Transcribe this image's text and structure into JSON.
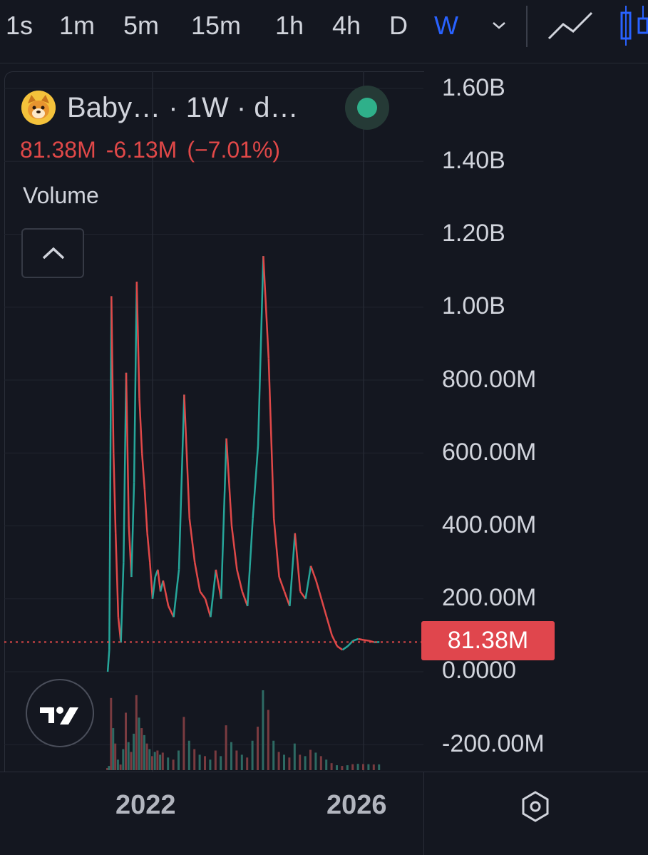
{
  "toolbar": {
    "timeframes": [
      "1s",
      "1m",
      "5m",
      "15m",
      "1h",
      "4h",
      "D",
      "W"
    ],
    "active_timeframe": "W",
    "icons": [
      "chevron-down-icon",
      "line-chart-icon",
      "candlestick-icon"
    ]
  },
  "legend": {
    "symbol_title": "Baby… · 1W · d…",
    "last_value": "81.38M",
    "change": "-6.13M",
    "change_percent": "(−7.01%)",
    "indicator": "Volume",
    "status_color": "#2fb08a",
    "down_color": "#e04848",
    "up_color": "#26a69a"
  },
  "price_badge": "81.38M",
  "axes": {
    "y_ticks": [
      "1.60B",
      "1.40B",
      "1.20B",
      "1.00B",
      "800.00M",
      "600.00M",
      "400.00M",
      "200.00M",
      "0.0000",
      "-200.00M"
    ],
    "x_ticks": [
      "2022",
      "2026"
    ]
  },
  "chart_data": {
    "type": "line",
    "title": "",
    "xlabel": "",
    "ylabel": "",
    "ylim": [
      -270000000,
      1700000000
    ],
    "last_value": 81380000,
    "grid": true,
    "series": [
      {
        "color": "#e04848",
        "x": [
          2021.15,
          2021.18,
          2021.22,
          2021.26,
          2021.3,
          2021.35,
          2021.4,
          2021.45,
          2021.5,
          2021.55,
          2021.6,
          2021.65,
          2021.7,
          2021.75,
          2021.8,
          2021.85,
          2021.9,
          2021.95,
          2022.0,
          2022.05,
          2022.1,
          2022.15,
          2022.2,
          2022.3,
          2022.4,
          2022.5,
          2022.6,
          2022.7,
          2022.8,
          2022.9,
          2023.0,
          2023.1,
          2023.2,
          2023.3,
          2023.4,
          2023.5,
          2023.6,
          2023.7,
          2023.8,
          2023.9,
          2024.0,
          2024.1,
          2024.2,
          2024.3,
          2024.4,
          2024.5,
          2024.6,
          2024.7,
          2024.8,
          2024.9,
          2025.0,
          2025.1,
          2025.2,
          2025.3,
          2025.4,
          2025.5,
          2025.6,
          2025.7,
          2025.8,
          2025.9,
          2026.0,
          2026.1,
          2026.2,
          2026.3
        ],
        "y": [
          0,
          60000000,
          1030000000,
          600000000,
          380000000,
          150000000,
          80000000,
          300000000,
          820000000,
          400000000,
          260000000,
          520000000,
          1070000000,
          750000000,
          600000000,
          500000000,
          380000000,
          300000000,
          200000000,
          260000000,
          280000000,
          220000000,
          250000000,
          180000000,
          150000000,
          280000000,
          760000000,
          420000000,
          300000000,
          220000000,
          200000000,
          150000000,
          280000000,
          200000000,
          640000000,
          400000000,
          280000000,
          220000000,
          180000000,
          420000000,
          620000000,
          1140000000,
          860000000,
          420000000,
          260000000,
          220000000,
          180000000,
          380000000,
          220000000,
          200000000,
          290000000,
          250000000,
          200000000,
          150000000,
          100000000,
          70000000,
          60000000,
          70000000,
          85000000,
          90000000,
          87000000,
          85000000,
          81000000,
          81380000
        ]
      }
    ]
  }
}
